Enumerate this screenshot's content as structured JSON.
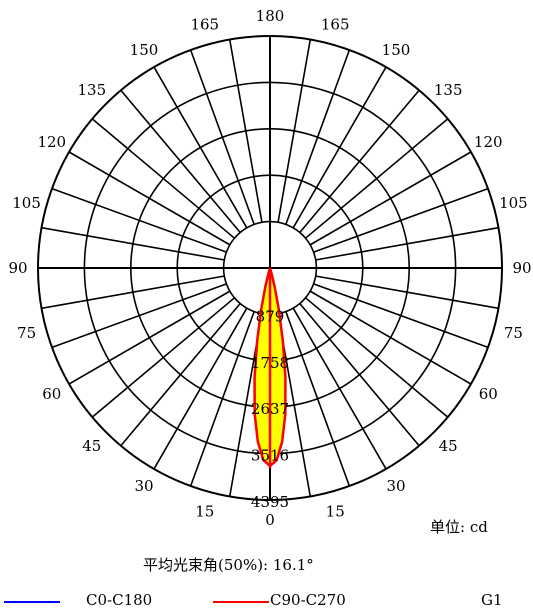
{
  "chart_data": {
    "type": "polar",
    "angle_labels_left": [
      "0",
      "15",
      "30",
      "45",
      "60",
      "75",
      "90",
      "105",
      "120",
      "135",
      "150",
      "165",
      "180"
    ],
    "angle_labels_right": [
      "15",
      "30",
      "45",
      "60",
      "75",
      "90",
      "105",
      "120",
      "135",
      "150",
      "165"
    ],
    "radial_ticks": [
      "879",
      "1758",
      "2637",
      "3516",
      "4395"
    ],
    "rmax": 4395,
    "grid": true,
    "series": [
      {
        "name": "C0-C180",
        "color": "#0000ff",
        "angles": [
          0,
          2,
          4,
          6,
          8,
          10,
          12,
          14,
          16,
          18
        ],
        "values": [
          3750,
          3640,
          3300,
          2780,
          2100,
          1400,
          800,
          360,
          100,
          0
        ]
      },
      {
        "name": "C90-C270",
        "color": "#ff0000",
        "angles": [
          0,
          2,
          4,
          6,
          8,
          10,
          12,
          14,
          16,
          18
        ],
        "values": [
          3750,
          3640,
          3300,
          2780,
          2100,
          1400,
          800,
          360,
          100,
          0
        ]
      }
    ]
  },
  "unit_text": "单位: cd",
  "beam_angle_text": "平均光束角(50%): 16.1°",
  "legend": {
    "c0_label": "C0-C180",
    "c90_label": "C90-C270",
    "g_label": "G1"
  },
  "colors": {
    "fill": "#ffff00",
    "c0": "#0000ff",
    "c90": "#ff0000"
  }
}
